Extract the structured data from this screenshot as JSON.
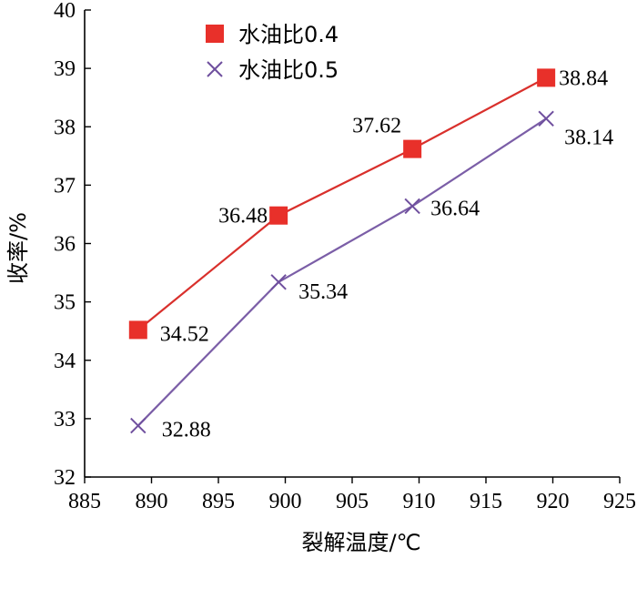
{
  "chart_data": {
    "type": "line",
    "xlabel": "裂解温度/℃",
    "ylabel": "收率/%",
    "xlim": [
      885,
      925
    ],
    "ylim": [
      32,
      40
    ],
    "xticks": [
      885,
      890,
      895,
      900,
      905,
      910,
      915,
      920,
      925
    ],
    "yticks": [
      32,
      33,
      34,
      35,
      36,
      37,
      38,
      39,
      40
    ],
    "grid": false,
    "legend_position": "top-left",
    "series": [
      {
        "name": "水油比0.4",
        "marker": "square",
        "line_color": "#d9302c",
        "marker_color": "#e8302a",
        "x": [
          889,
          899.5,
          909.5,
          919.5
        ],
        "y": [
          34.52,
          36.48,
          37.62,
          38.84
        ],
        "labels": [
          "34.52",
          "36.48",
          "37.62",
          "38.84"
        ]
      },
      {
        "name": "水油比0.5",
        "marker": "x",
        "line_color": "#7b5ea7",
        "marker_color": "#6f4f9e",
        "x": [
          889,
          899.5,
          909.5,
          919.5
        ],
        "y": [
          32.88,
          35.34,
          36.64,
          38.14
        ],
        "labels": [
          "32.88",
          "35.34",
          "36.64",
          "38.14"
        ]
      }
    ]
  }
}
